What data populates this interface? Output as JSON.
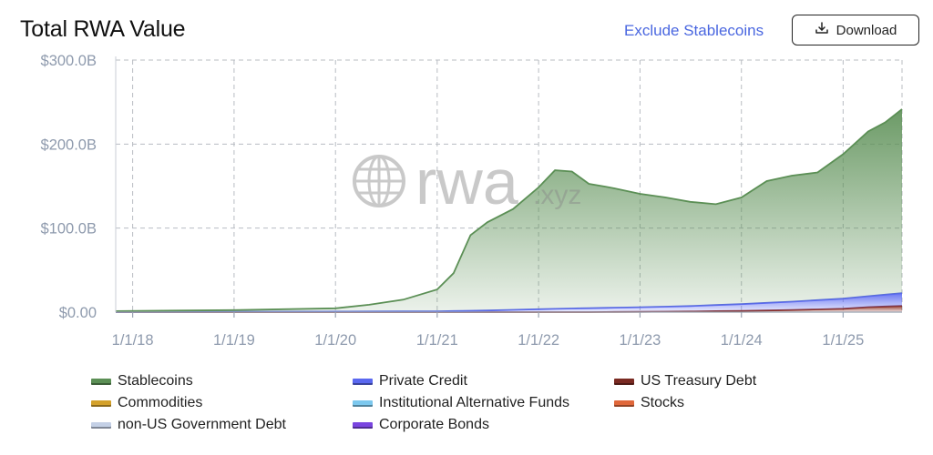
{
  "header": {
    "title": "Total RWA Value",
    "exclude_label": "Exclude Stablecoins",
    "download_label": "Download"
  },
  "watermark": {
    "text": "rwa",
    "suffix": ".xyz"
  },
  "colors": {
    "stablecoins": "#5b8f55",
    "private_credit": "#5a68f0",
    "us_treasury": "#8b2e22",
    "grid": "#b8bcc2",
    "tick": "#8e9aad"
  },
  "legend": [
    {
      "label": "Stablecoins",
      "color": "#5b8f55"
    },
    {
      "label": "Private Credit",
      "color": "#5a68f0"
    },
    {
      "label": "US Treasury Debt",
      "color": "#7a2a22"
    },
    {
      "label": "Commodities",
      "color": "#d4a12a"
    },
    {
      "label": "Institutional Alternative Funds",
      "color": "#7cc8ee"
    },
    {
      "label": "Stocks",
      "color": "#e0673a"
    },
    {
      "label": "non-US Government Debt",
      "color": "#c4d0e6"
    },
    {
      "label": "Corporate Bonds",
      "color": "#7a45e0"
    }
  ],
  "chart_data": {
    "type": "area",
    "stacked": true,
    "title": "Total RWA Value",
    "xlabel": "",
    "ylabel": "",
    "x_ticks": [
      "1/1/18",
      "1/1/19",
      "1/1/20",
      "1/1/21",
      "1/1/22",
      "1/1/23",
      "1/1/24",
      "1/1/25"
    ],
    "y_ticks": [
      "$0.00",
      "$100.0B",
      "$200.0B",
      "$300.0B"
    ],
    "ylim": [
      0,
      300
    ],
    "xlim": [
      "2017-11-01",
      "2025-08-01"
    ],
    "grid": true,
    "legend_position": "bottom",
    "series": [
      {
        "name": "US Treasury Debt",
        "color": "#8b2e22",
        "points": [
          [
            "2017-11-01",
            0
          ],
          [
            "2022-06-01",
            0
          ],
          [
            "2023-01-01",
            0.3
          ],
          [
            "2023-07-01",
            0.8
          ],
          [
            "2024-01-01",
            1.5
          ],
          [
            "2024-07-01",
            2.5
          ],
          [
            "2025-01-01",
            4
          ],
          [
            "2025-04-01",
            6
          ],
          [
            "2025-08-01",
            7.5
          ]
        ]
      },
      {
        "name": "Private Credit",
        "color": "#5a68f0",
        "points": [
          [
            "2017-11-01",
            0.2
          ],
          [
            "2019-01-01",
            0.4
          ],
          [
            "2020-01-01",
            0.6
          ],
          [
            "2021-01-01",
            1
          ],
          [
            "2021-07-01",
            2
          ],
          [
            "2022-01-01",
            3.5
          ],
          [
            "2022-06-01",
            4.5
          ],
          [
            "2022-09-01",
            5
          ],
          [
            "2023-01-01",
            5.5
          ],
          [
            "2023-07-01",
            6.5
          ],
          [
            "2024-01-01",
            8
          ],
          [
            "2024-07-01",
            10
          ],
          [
            "2025-01-01",
            12
          ],
          [
            "2025-04-01",
            13
          ],
          [
            "2025-08-01",
            15
          ]
        ]
      },
      {
        "name": "Stablecoins",
        "color": "#5b8f55",
        "points": [
          [
            "2017-11-01",
            1
          ],
          [
            "2018-06-01",
            1.5
          ],
          [
            "2019-01-01",
            2
          ],
          [
            "2019-07-01",
            3
          ],
          [
            "2020-01-01",
            4
          ],
          [
            "2020-05-01",
            8
          ],
          [
            "2020-09-01",
            14
          ],
          [
            "2021-01-01",
            26
          ],
          [
            "2021-03-01",
            45
          ],
          [
            "2021-05-01",
            90
          ],
          [
            "2021-07-01",
            105
          ],
          [
            "2021-10-01",
            120
          ],
          [
            "2022-01-01",
            145
          ],
          [
            "2022-03-01",
            165
          ],
          [
            "2022-05-01",
            163
          ],
          [
            "2022-07-01",
            148
          ],
          [
            "2022-10-01",
            142
          ],
          [
            "2023-01-01",
            135
          ],
          [
            "2023-04-01",
            130
          ],
          [
            "2023-07-01",
            124
          ],
          [
            "2023-10-01",
            120
          ],
          [
            "2024-01-01",
            127
          ],
          [
            "2024-04-01",
            145
          ],
          [
            "2024-07-01",
            150
          ],
          [
            "2024-10-01",
            152
          ],
          [
            "2025-01-01",
            172
          ],
          [
            "2025-04-01",
            196
          ],
          [
            "2025-06-01",
            205
          ],
          [
            "2025-08-01",
            219
          ]
        ]
      }
    ]
  }
}
